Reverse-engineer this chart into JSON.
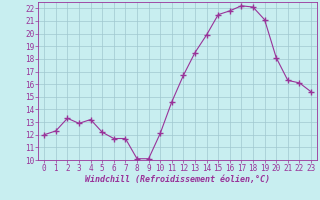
{
  "x": [
    0,
    1,
    2,
    3,
    4,
    5,
    6,
    7,
    8,
    9,
    10,
    11,
    12,
    13,
    14,
    15,
    16,
    17,
    18,
    19,
    20,
    21,
    22,
    23
  ],
  "y": [
    12,
    12.3,
    13.3,
    12.9,
    13.2,
    12.2,
    11.7,
    11.7,
    10.1,
    10.1,
    12.1,
    14.6,
    16.7,
    18.5,
    19.9,
    21.5,
    21.8,
    22.2,
    22.1,
    21.1,
    18.1,
    16.3,
    16.1,
    15.4
  ],
  "line_color": "#993399",
  "marker": "+",
  "marker_size": 4,
  "marker_linewidth": 1.0,
  "bg_color": "#c8eef0",
  "grid_color": "#a0c8d0",
  "xlabel": "Windchill (Refroidissement éolien,°C)",
  "xlabel_color": "#993399",
  "tick_color": "#993399",
  "ylim": [
    10,
    22.5
  ],
  "xlim": [
    -0.5,
    23.5
  ],
  "yticks": [
    10,
    11,
    12,
    13,
    14,
    15,
    16,
    17,
    18,
    19,
    20,
    21,
    22
  ],
  "xticks": [
    0,
    1,
    2,
    3,
    4,
    5,
    6,
    7,
    8,
    9,
    10,
    11,
    12,
    13,
    14,
    15,
    16,
    17,
    18,
    19,
    20,
    21,
    22,
    23
  ],
  "tick_fontsize": 5.5,
  "xlabel_fontsize": 6.0
}
